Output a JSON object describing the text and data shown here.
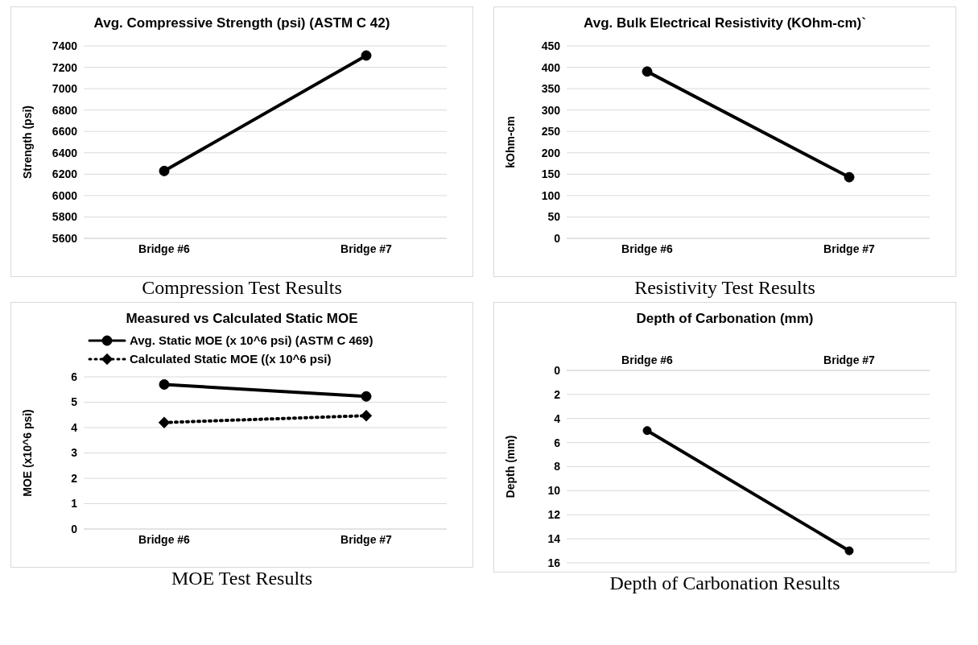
{
  "chart_data": [
    {
      "type": "line",
      "title": "Avg. Compressive Strength  (psi) (ASTM C 42)",
      "ylabel": "Strength (psi)",
      "categories": [
        "Bridge #6",
        "Bridge #7"
      ],
      "series": [
        {
          "color": "#000000",
          "values": [
            6230,
            7310
          ],
          "marker": "circle",
          "line_style": "solid"
        }
      ],
      "ylim": [
        5600,
        7400
      ],
      "yticks": [
        5600,
        5800,
        6000,
        6200,
        6400,
        6600,
        6800,
        7000,
        7200,
        7400
      ],
      "grid": "y",
      "legend": false,
      "annotations": [
        "Compression Test Results"
      ]
    },
    {
      "type": "line",
      "title": "Avg. Bulk Electrical Resistivity (KOhm-cm)`",
      "ylabel": "kOhm-cm",
      "categories": [
        "Bridge #6",
        "Bridge #7"
      ],
      "series": [
        {
          "color": "#000000",
          "values": [
            390,
            143
          ],
          "marker": "circle",
          "line_style": "solid"
        }
      ],
      "ylim": [
        0,
        450
      ],
      "yticks": [
        0,
        50,
        100,
        150,
        200,
        250,
        300,
        350,
        400,
        450
      ],
      "grid": "y",
      "legend": false,
      "annotations": [
        "Resistivity Test Results"
      ]
    },
    {
      "type": "line",
      "title": "Measured vs Calculated Static MOE",
      "ylabel": "MOE (x10^6 psi)",
      "categories": [
        "Bridge #6",
        "Bridge #7"
      ],
      "series": [
        {
          "name": "Avg. Static MOE (x 10^6 psi) (ASTM C 469)",
          "color": "#000000",
          "values": [
            5.7,
            5.23
          ],
          "marker": "circle",
          "line_style": "solid"
        },
        {
          "name": "Calculated Static MOE ((x 10^6 psi)",
          "color": "#000000",
          "values": [
            4.2,
            4.47
          ],
          "marker": "diamond",
          "line_style": "dotted"
        }
      ],
      "ylim": [
        0,
        6
      ],
      "yticks": [
        0,
        1,
        2,
        3,
        4,
        5,
        6
      ],
      "grid": "y",
      "legend": "top",
      "annotations": [
        "MOE Test Results"
      ]
    },
    {
      "type": "line",
      "title": "Depth of Carbonation (mm)",
      "ylabel": "Depth (mm)",
      "categories": [
        "Bridge #6",
        "Bridge #7"
      ],
      "series": [
        {
          "color": "#000000",
          "values": [
            5,
            15
          ],
          "marker": "circle",
          "line_style": "solid"
        }
      ],
      "ylim": [
        16,
        0
      ],
      "yticks": [
        0,
        2,
        4,
        6,
        8,
        10,
        12,
        14,
        16
      ],
      "grid": "y",
      "legend": false,
      "annotations": [
        "Depth of Carbonation Results"
      ]
    }
  ]
}
